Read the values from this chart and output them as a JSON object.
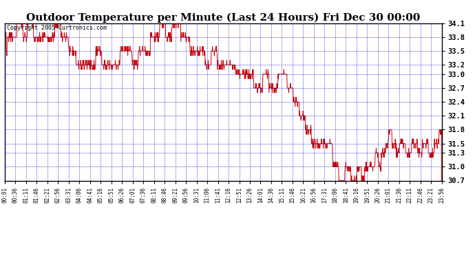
{
  "title": "Outdoor Temperature per Minute (Last 24 Hours) Fri Dec 30 00:00",
  "copyright": "Copyright 2005 Curtronics.com",
  "ylim": [
    30.7,
    34.1
  ],
  "yticks": [
    30.7,
    31.0,
    31.3,
    31.5,
    31.8,
    32.1,
    32.4,
    32.7,
    33.0,
    33.2,
    33.5,
    33.8,
    34.1
  ],
  "line_color": "#cc0000",
  "background_color": "#ffffff",
  "grid_color": "#0000cc",
  "title_fontsize": 11,
  "copyright_fontsize": 6,
  "xlabel_fontsize": 5.5,
  "ylabel_fontsize": 7.5,
  "xtick_labels": [
    "00:01",
    "00:36",
    "01:11",
    "01:46",
    "02:21",
    "02:56",
    "03:31",
    "04:06",
    "04:41",
    "05:16",
    "05:51",
    "06:26",
    "07:01",
    "07:36",
    "08:11",
    "08:46",
    "09:21",
    "09:56",
    "10:31",
    "11:06",
    "11:41",
    "12:16",
    "12:51",
    "13:26",
    "14:01",
    "14:36",
    "15:11",
    "15:46",
    "16:21",
    "16:56",
    "17:31",
    "18:06",
    "18:41",
    "19:16",
    "19:51",
    "20:26",
    "21:01",
    "21:36",
    "22:11",
    "22:46",
    "23:21",
    "23:56"
  ]
}
